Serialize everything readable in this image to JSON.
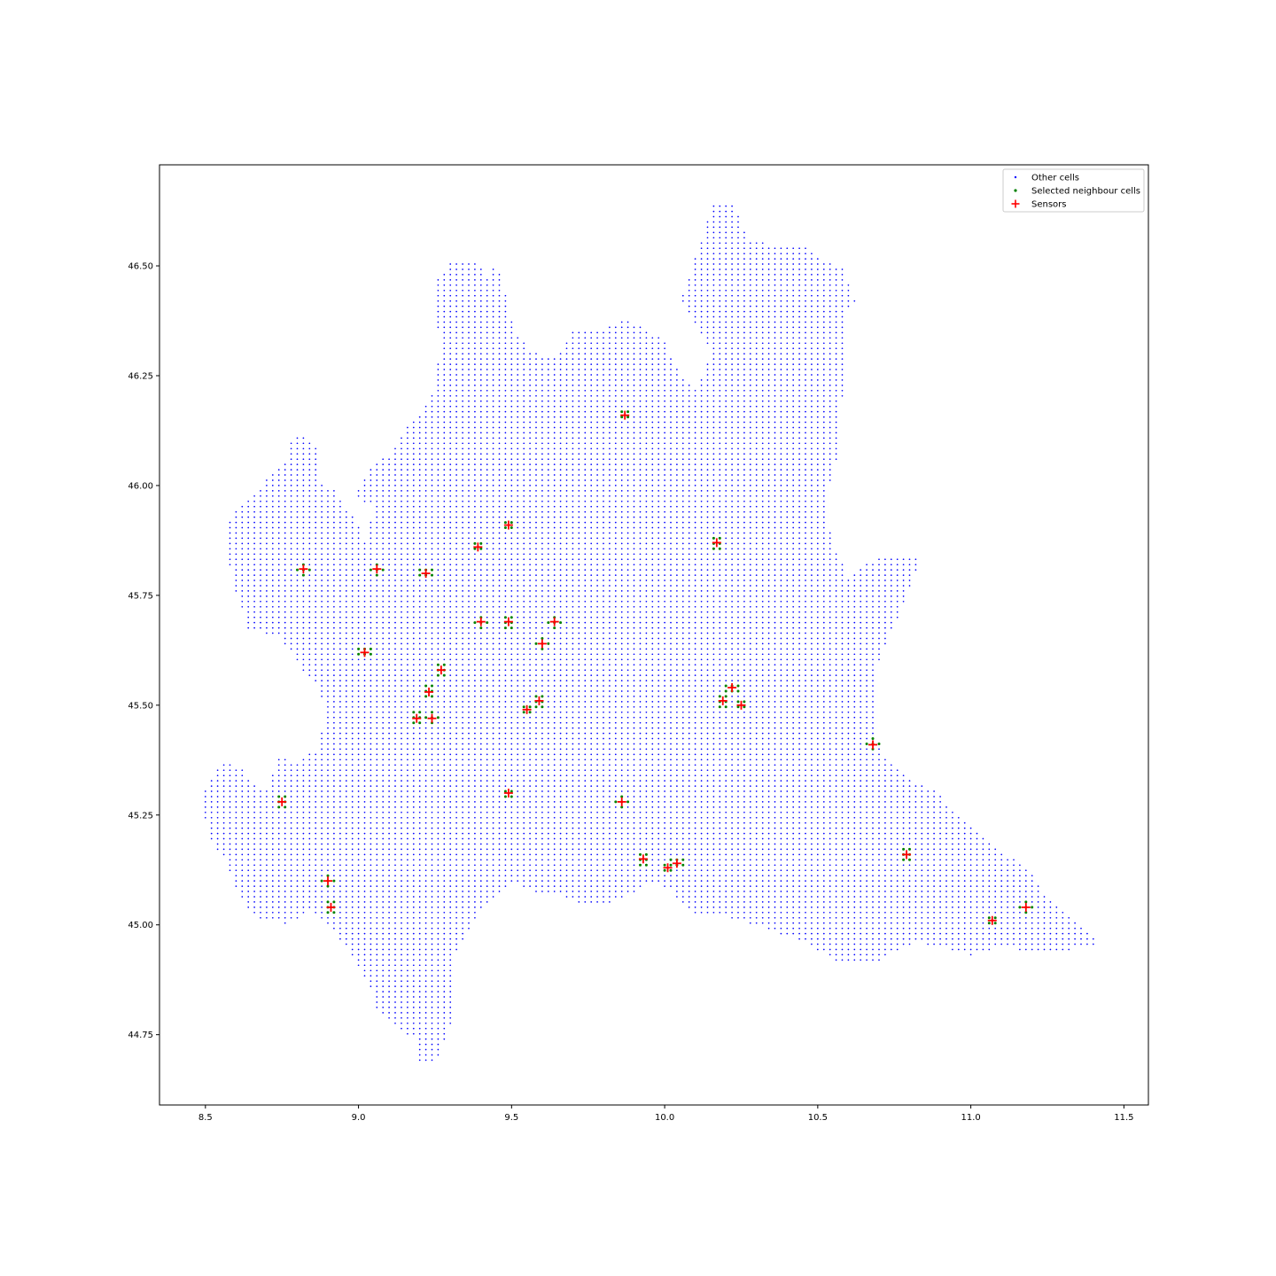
{
  "chart_data": {
    "type": "scatter",
    "title": "",
    "xlabel": "",
    "ylabel": "",
    "xlim": [
      8.35,
      11.58
    ],
    "ylim": [
      44.59,
      46.73
    ],
    "grid": false,
    "legend_placement": "top-right",
    "xticks": [
      "8.5",
      "9.0",
      "9.5",
      "10.0",
      "10.5",
      "11.0",
      "11.5"
    ],
    "yticks": [
      "44.75",
      "45.00",
      "45.25",
      "45.50",
      "45.75",
      "46.00",
      "46.25",
      "46.50"
    ],
    "cell_spacing": {
      "dlon": 0.02,
      "dlat": 0.012
    },
    "series": [
      {
        "name": "Other cells",
        "marker": "dot",
        "color": "#0000ff",
        "region_outline": [
          [
            8.49,
            45.29
          ],
          [
            8.52,
            45.34
          ],
          [
            8.56,
            45.37
          ],
          [
            8.62,
            45.36
          ],
          [
            8.66,
            45.32
          ],
          [
            8.7,
            45.31
          ],
          [
            8.74,
            45.38
          ],
          [
            8.8,
            45.37
          ],
          [
            8.86,
            45.4
          ],
          [
            8.89,
            45.47
          ],
          [
            8.87,
            45.55
          ],
          [
            8.82,
            45.57
          ],
          [
            8.78,
            45.62
          ],
          [
            8.74,
            45.66
          ],
          [
            8.64,
            45.67
          ],
          [
            8.6,
            45.76
          ],
          [
            8.57,
            45.84
          ],
          [
            8.56,
            45.91
          ],
          [
            8.62,
            45.96
          ],
          [
            8.68,
            46.0
          ],
          [
            8.72,
            46.03
          ],
          [
            8.76,
            46.06
          ],
          [
            8.79,
            46.12
          ],
          [
            8.85,
            46.1
          ],
          [
            8.88,
            46.07
          ],
          [
            8.86,
            46.02
          ],
          [
            8.92,
            45.99
          ],
          [
            8.98,
            45.93
          ],
          [
            9.02,
            45.88
          ],
          [
            9.05,
            45.95
          ],
          [
            8.98,
            45.97
          ],
          [
            9.0,
            45.99
          ],
          [
            9.03,
            46.04
          ],
          [
            9.1,
            46.07
          ],
          [
            9.15,
            46.13
          ],
          [
            9.2,
            46.16
          ],
          [
            9.24,
            46.21
          ],
          [
            9.27,
            46.31
          ],
          [
            9.25,
            46.4
          ],
          [
            9.24,
            46.45
          ],
          [
            9.3,
            46.51
          ],
          [
            9.38,
            46.51
          ],
          [
            9.42,
            46.48
          ],
          [
            9.45,
            46.51
          ],
          [
            9.48,
            46.44
          ],
          [
            9.51,
            46.35
          ],
          [
            9.56,
            46.31
          ],
          [
            9.64,
            46.29
          ],
          [
            9.7,
            46.35
          ],
          [
            9.78,
            46.35
          ],
          [
            9.88,
            46.38
          ],
          [
            9.95,
            46.35
          ],
          [
            10.0,
            46.33
          ],
          [
            10.05,
            46.25
          ],
          [
            10.1,
            46.22
          ],
          [
            10.15,
            46.3
          ],
          [
            10.1,
            46.37
          ],
          [
            10.05,
            46.42
          ],
          [
            10.13,
            46.58
          ],
          [
            10.15,
            46.64
          ],
          [
            10.22,
            46.64
          ],
          [
            10.28,
            46.56
          ],
          [
            10.35,
            46.55
          ],
          [
            10.45,
            46.55
          ],
          [
            10.53,
            46.51
          ],
          [
            10.59,
            46.49
          ],
          [
            10.62,
            46.42
          ],
          [
            10.58,
            46.38
          ],
          [
            10.58,
            46.2
          ],
          [
            10.56,
            46.06
          ],
          [
            10.52,
            45.96
          ],
          [
            10.55,
            45.87
          ],
          [
            10.58,
            45.82
          ],
          [
            10.6,
            45.79
          ],
          [
            10.65,
            45.82
          ],
          [
            10.72,
            45.84
          ],
          [
            10.84,
            45.84
          ],
          [
            10.78,
            45.73
          ],
          [
            10.7,
            45.6
          ],
          [
            10.68,
            45.45
          ],
          [
            10.72,
            45.38
          ],
          [
            10.8,
            45.33
          ],
          [
            10.88,
            45.31
          ],
          [
            10.95,
            45.25
          ],
          [
            11.05,
            45.19
          ],
          [
            11.14,
            45.15
          ],
          [
            11.2,
            45.12
          ],
          [
            11.25,
            45.06
          ],
          [
            11.32,
            45.02
          ],
          [
            11.38,
            44.99
          ],
          [
            11.43,
            44.96
          ],
          [
            11.38,
            44.95
          ],
          [
            11.3,
            44.94
          ],
          [
            11.2,
            44.94
          ],
          [
            11.1,
            44.95
          ],
          [
            11.0,
            44.93
          ],
          [
            10.9,
            44.95
          ],
          [
            10.82,
            44.96
          ],
          [
            10.7,
            44.92
          ],
          [
            10.55,
            44.92
          ],
          [
            10.45,
            44.96
          ],
          [
            10.38,
            44.98
          ],
          [
            10.3,
            45.0
          ],
          [
            10.2,
            45.02
          ],
          [
            10.1,
            45.02
          ],
          [
            10.05,
            45.05
          ],
          [
            10.02,
            45.08
          ],
          [
            9.95,
            45.1
          ],
          [
            9.9,
            45.07
          ],
          [
            9.82,
            45.05
          ],
          [
            9.72,
            45.05
          ],
          [
            9.65,
            45.07
          ],
          [
            9.58,
            45.07
          ],
          [
            9.5,
            45.1
          ],
          [
            9.42,
            45.05
          ],
          [
            9.37,
            45.0
          ],
          [
            9.33,
            44.95
          ],
          [
            9.3,
            44.9
          ],
          [
            9.32,
            44.82
          ],
          [
            9.3,
            44.77
          ],
          [
            9.28,
            44.73
          ],
          [
            9.25,
            44.69
          ],
          [
            9.2,
            44.69
          ],
          [
            9.18,
            44.74
          ],
          [
            9.12,
            44.77
          ],
          [
            9.06,
            44.8
          ],
          [
            9.04,
            44.85
          ],
          [
            9.0,
            44.9
          ],
          [
            8.95,
            44.96
          ],
          [
            8.9,
            45.0
          ],
          [
            8.84,
            45.03
          ],
          [
            8.77,
            45.0
          ],
          [
            8.7,
            45.01
          ],
          [
            8.65,
            45.02
          ],
          [
            8.6,
            45.08
          ],
          [
            8.57,
            45.14
          ],
          [
            8.52,
            45.19
          ],
          [
            8.5,
            45.24
          ]
        ]
      },
      {
        "name": "Selected neighbour cells",
        "marker": "dot",
        "color": "#008000",
        "neighbour_radius_deg": 0.025
      },
      {
        "name": "Sensors",
        "marker": "plus",
        "color": "#ff0000",
        "points": [
          [
            9.87,
            46.16
          ],
          [
            10.17,
            45.87
          ],
          [
            9.49,
            45.91
          ],
          [
            9.39,
            45.86
          ],
          [
            8.82,
            45.81
          ],
          [
            9.06,
            45.81
          ],
          [
            9.22,
            45.8
          ],
          [
            9.4,
            45.69
          ],
          [
            9.49,
            45.69
          ],
          [
            9.64,
            45.69
          ],
          [
            9.6,
            45.64
          ],
          [
            9.02,
            45.62
          ],
          [
            9.27,
            45.58
          ],
          [
            9.23,
            45.53
          ],
          [
            9.19,
            45.47
          ],
          [
            9.24,
            45.47
          ],
          [
            9.55,
            45.49
          ],
          [
            9.59,
            45.51
          ],
          [
            10.22,
            45.54
          ],
          [
            10.19,
            45.51
          ],
          [
            10.25,
            45.5
          ],
          [
            10.68,
            45.41
          ],
          [
            8.75,
            45.28
          ],
          [
            9.49,
            45.3
          ],
          [
            9.86,
            45.28
          ],
          [
            9.93,
            45.15
          ],
          [
            10.04,
            45.14
          ],
          [
            10.01,
            45.13
          ],
          [
            10.79,
            45.16
          ],
          [
            8.9,
            45.1
          ],
          [
            8.91,
            45.04
          ],
          [
            11.07,
            45.01
          ],
          [
            11.18,
            45.04
          ]
        ]
      }
    ]
  }
}
